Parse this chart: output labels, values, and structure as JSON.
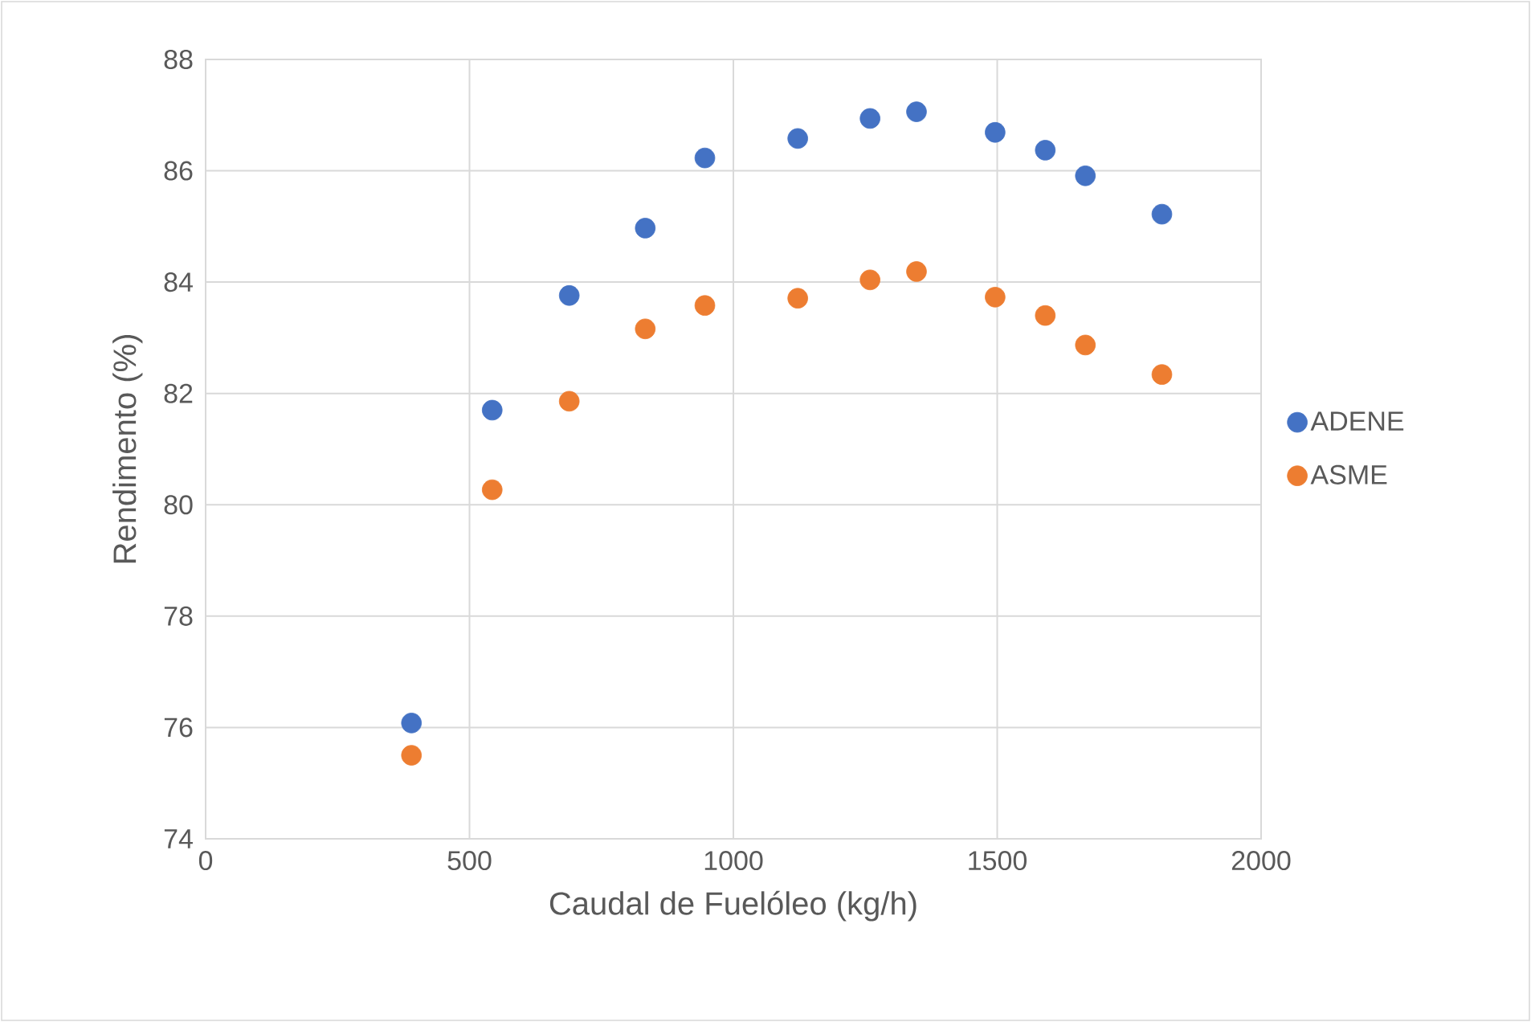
{
  "chart_data": {
    "type": "scatter",
    "xlabel": "Caudal de Fuelóleo (kg/h)",
    "ylabel": "Rendimento (%)",
    "x": [
      390,
      543,
      689,
      833,
      946,
      1122,
      1259,
      1347,
      1496,
      1591,
      1667,
      1812
    ],
    "series": [
      {
        "name": "ADENE",
        "color": "#4472c4",
        "values": [
          76.08,
          81.7,
          83.76,
          84.97,
          86.23,
          86.58,
          86.94,
          87.06,
          86.69,
          86.37,
          85.91,
          85.22
        ]
      },
      {
        "name": "ASME",
        "color": "#ed7d31",
        "values": [
          75.5,
          80.27,
          81.86,
          83.16,
          83.58,
          83.71,
          84.04,
          84.19,
          83.73,
          83.4,
          82.87,
          82.34
        ]
      }
    ],
    "xlim": [
      0,
      2000
    ],
    "xticks": [
      0,
      500,
      1000,
      1500,
      2000
    ],
    "ylim": [
      74,
      88
    ],
    "yticks": [
      74,
      76,
      78,
      80,
      82,
      84,
      86,
      88
    ],
    "grid": true,
    "legend": "right",
    "marker": "circle"
  }
}
